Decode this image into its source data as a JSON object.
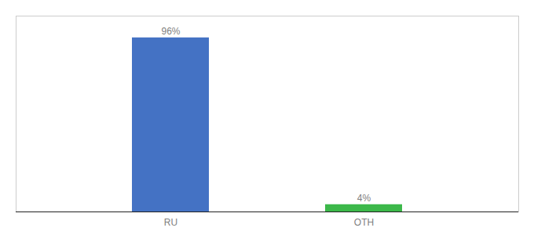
{
  "chart_data": {
    "type": "bar",
    "categories": [
      "RU",
      "OTH"
    ],
    "values": [
      96,
      4
    ],
    "value_labels": [
      "96%",
      "4%"
    ],
    "colors": [
      "#4472c4",
      "#3cb84a"
    ],
    "ylim": [
      0,
      108
    ],
    "data_labels": true,
    "tick_labels": "x"
  }
}
